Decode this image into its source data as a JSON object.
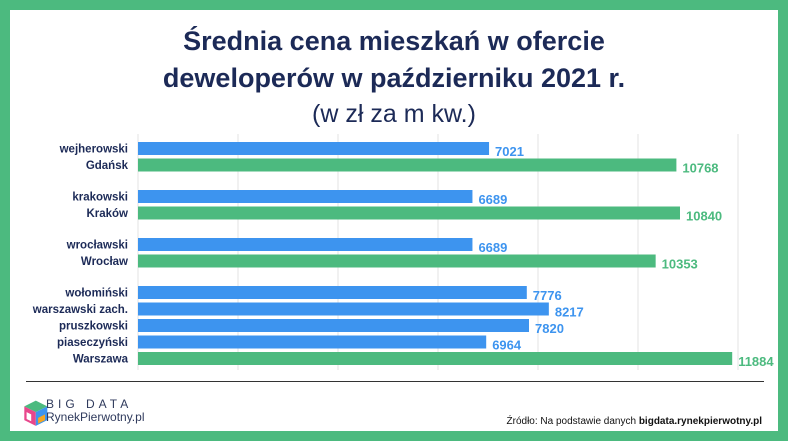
{
  "chart_data": {
    "type": "bar",
    "orientation": "horizontal",
    "title_line1": "Średnia cena mieszkań w ofercie",
    "title_line2": "deweloperów w październiku 2021 r.",
    "subtitle": "(w zł za m kw.)",
    "xlim": [
      0,
      12000
    ],
    "grid": true,
    "colors": {
      "county": "#3d94ef",
      "city": "#4cba7f",
      "label_county": "#3d94ef",
      "label_city": "#4cba7f"
    },
    "groups": [
      {
        "bars": [
          {
            "category": "wejherowski",
            "value": 7021,
            "kind": "county"
          },
          {
            "category": "Gdańsk",
            "value": 10768,
            "kind": "city"
          }
        ]
      },
      {
        "bars": [
          {
            "category": "krakowski",
            "value": 6689,
            "kind": "county"
          },
          {
            "category": "Kraków",
            "value": 10840,
            "kind": "city"
          }
        ]
      },
      {
        "bars": [
          {
            "category": "wrocławski",
            "value": 6689,
            "kind": "county"
          },
          {
            "category": "Wrocław",
            "value": 10353,
            "kind": "city"
          }
        ]
      },
      {
        "bars": [
          {
            "category": "wołomiński",
            "value": 7776,
            "kind": "county"
          },
          {
            "category": "warszawski zach.",
            "value": 8217,
            "kind": "county"
          },
          {
            "category": "pruszkowski",
            "value": 7820,
            "kind": "county"
          },
          {
            "category": "piaseczyński",
            "value": 6964,
            "kind": "county"
          },
          {
            "category": "Warszawa",
            "value": 11884,
            "kind": "city"
          }
        ]
      }
    ]
  },
  "brand": {
    "logo_top": "BIG DATA",
    "logo_bottom": "RynekPierwotny.pl",
    "logo_colors": [
      "#e8478c",
      "#f5a623",
      "#4cba7f",
      "#3d94ef"
    ]
  },
  "source": {
    "prefix": "Źródło: Na podstawie danych",
    "bold": "bigdata.rynekpierwotny.pl"
  }
}
